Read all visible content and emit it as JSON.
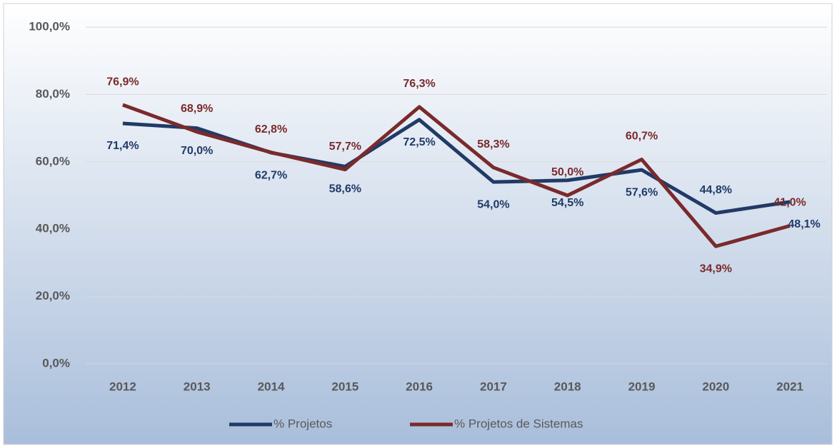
{
  "chart_data": {
    "type": "line",
    "categories": [
      "2012",
      "2013",
      "2014",
      "2015",
      "2016",
      "2017",
      "2018",
      "2019",
      "2020",
      "2021"
    ],
    "series": [
      {
        "name": "% Projetos",
        "color": "#213a66",
        "values": [
          71.4,
          70.0,
          62.7,
          58.6,
          72.5,
          54.0,
          54.5,
          57.6,
          44.8,
          48.1
        ],
        "value_labels": [
          "71,4%",
          "70,0%",
          "62,7%",
          "58,6%",
          "72,5%",
          "54,0%",
          "54,5%",
          "57,6%",
          "44,8%",
          "48,1%"
        ]
      },
      {
        "name": "% Projetos de Sistemas",
        "color": "#7a2a2c",
        "values": [
          76.9,
          68.9,
          62.8,
          57.7,
          76.3,
          58.3,
          50.0,
          60.7,
          34.9,
          41.0
        ],
        "value_labels": [
          "76,9%",
          "68,9%",
          "62,8%",
          "57,7%",
          "76,3%",
          "58,3%",
          "50,0%",
          "60,7%",
          "34,9%",
          "41,0%"
        ]
      }
    ],
    "ylim": [
      0,
      100
    ],
    "yticks": [
      {
        "value": 0,
        "label": "0,0%"
      },
      {
        "value": 20,
        "label": "20,0%"
      },
      {
        "value": 40,
        "label": "40,0%"
      },
      {
        "value": 60,
        "label": "60,0%"
      },
      {
        "value": 80,
        "label": "80,0%"
      },
      {
        "value": 100,
        "label": "100,0%"
      }
    ],
    "grid": true,
    "legend": "bottom"
  }
}
